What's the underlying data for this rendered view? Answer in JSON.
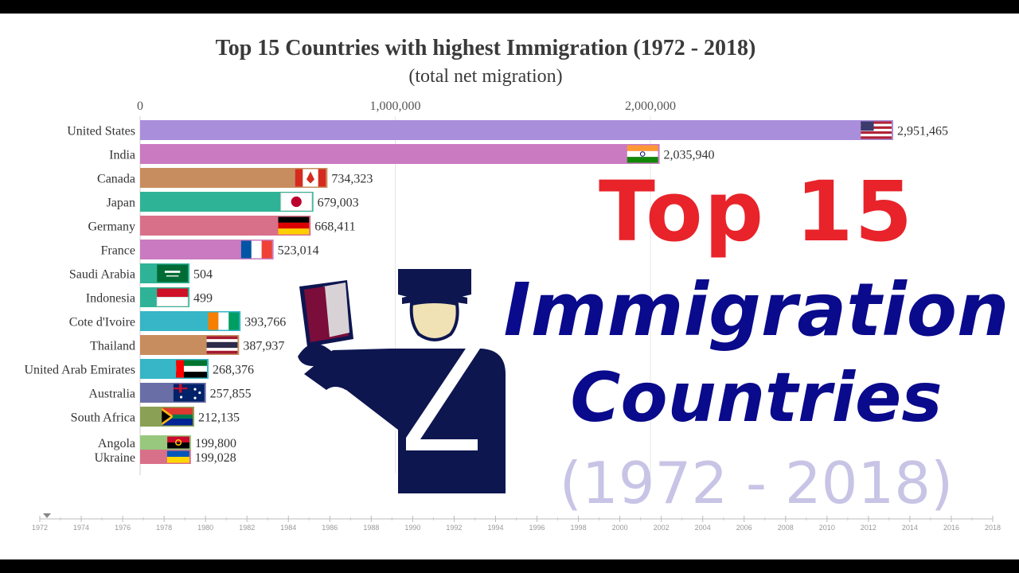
{
  "chart_data": {
    "type": "bar",
    "title": "Top 15 Countries with highest Immigration (1972 - 2018)",
    "subtitle": "(total net migration)",
    "xlim": [
      0,
      2951465
    ],
    "x_ticks": [
      {
        "value": 0,
        "label": "0"
      },
      {
        "value": 1000000,
        "label": "1,000,000"
      },
      {
        "value": 2000000,
        "label": "2,000,000"
      }
    ],
    "grid": true,
    "categories": [
      "United States",
      "India",
      "Canada",
      "Japan",
      "Germany",
      "France",
      "Saudi Arabia",
      "Indonesia",
      "Cote d'Ivoire",
      "Thailand",
      "United Arab Emirates",
      "Australia",
      "South Africa",
      "Angola",
      "Ukraine"
    ],
    "values": [
      2951465,
      2035940,
      734323,
      679003,
      668411,
      523014,
      504,
      499,
      393766,
      387937,
      268376,
      257855,
      212135,
      199800,
      199028
    ],
    "value_labels": [
      "2,951,465",
      "2,035,940",
      "734,323",
      "679,003",
      "668,411",
      "523,014",
      "504",
      "499",
      "393,766",
      "387,937",
      "268,376",
      "257,855",
      "212,135",
      "199,800",
      "199,028"
    ],
    "bar_colors": [
      "#a98edb",
      "#c97ac1",
      "#c88d5e",
      "#2fb396",
      "#d9708a",
      "#c97ac1",
      "#2fb396",
      "#2fb396",
      "#36b6c6",
      "#c88d5e",
      "#36b6c6",
      "#6a6ea6",
      "#8aa054",
      "#97c87e",
      "#d9708a"
    ],
    "flags": [
      "us-flag-icon",
      "india-flag-icon",
      "canada-flag-icon",
      "japan-flag-icon",
      "germany-flag-icon",
      "france-flag-icon",
      "saudi-arabia-flag-icon",
      "indonesia-flag-icon",
      "cote-divoire-flag-icon",
      "thailand-flag-icon",
      "uae-flag-icon",
      "australia-flag-icon",
      "south-africa-flag-icon",
      "angola-flag-icon",
      "ukraine-flag-icon"
    ]
  },
  "timeline": {
    "years": [
      "1972",
      "1974",
      "1976",
      "1978",
      "1980",
      "1982",
      "1984",
      "1986",
      "1988",
      "1990",
      "1992",
      "1994",
      "1996",
      "1998",
      "2000",
      "2002",
      "2004",
      "2006",
      "2008",
      "2010",
      "2012",
      "2014",
      "2016",
      "2018"
    ],
    "current": "1972"
  },
  "overlay": {
    "line1": "Top 15",
    "line2": "Immigration",
    "line3": "Countries",
    "line4": "(1972 - 2018)",
    "icon": "immigration-officer-icon"
  }
}
